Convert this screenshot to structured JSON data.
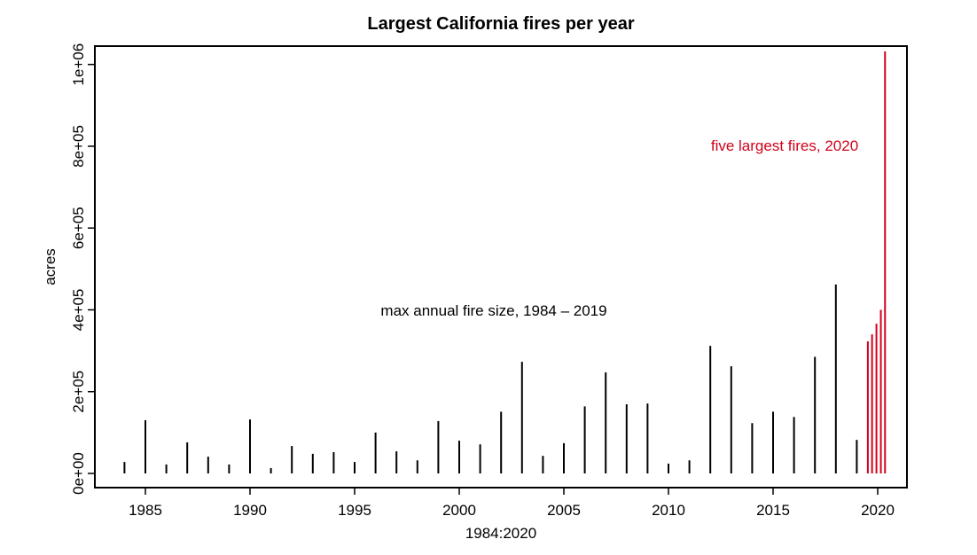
{
  "chart_data": {
    "type": "bar",
    "title": "Largest California fires per year",
    "xlabel": "1984:2020",
    "ylabel": "acres",
    "xlim": [
      1983.2,
      2020.9
    ],
    "ylim": [
      0,
      1000000
    ],
    "x_ticks": [
      "1985",
      "1990",
      "1995",
      "2000",
      "2005",
      "2010",
      "2015",
      "2020"
    ],
    "y_ticks": [
      "0e+00",
      "2e+05",
      "4e+05",
      "6e+05",
      "8e+05",
      "1e+06"
    ],
    "grid": false,
    "colors": {
      "historical": "#000000",
      "highlight": "#d0021b"
    },
    "annotations": [
      {
        "text": "max annual fire size, 1984 – 2019",
        "color": "#000000"
      },
      {
        "text": "five largest fires, 2020",
        "color": "#d0021b"
      }
    ],
    "series": [
      {
        "x": [
          1984,
          1985,
          1986,
          1987,
          1988,
          1989,
          1990,
          1991,
          1992,
          1993,
          1994,
          1995,
          1996,
          1997,
          1998,
          1999,
          2000,
          2001,
          2002,
          2003,
          2004,
          2005,
          2006,
          2007,
          2008,
          2009,
          2010,
          2011,
          2012,
          2013,
          2014,
          2015,
          2016,
          2017,
          2018,
          2019
        ],
        "values": [
          28000,
          130000,
          22000,
          76000,
          41000,
          22000,
          132000,
          13000,
          67000,
          48000,
          52000,
          28000,
          100000,
          54000,
          32000,
          128000,
          80000,
          71000,
          151000,
          273000,
          43000,
          74000,
          164000,
          247000,
          169000,
          171000,
          24000,
          32000,
          312000,
          262000,
          123000,
          151000,
          138000,
          285000,
          462000,
          82000
        ],
        "color": "#000000"
      },
      {
        "x": [
          2019.53,
          2019.73,
          2019.94,
          2020.15,
          2020.35
        ],
        "values": [
          323000,
          340000,
          366000,
          400000,
          1032000
        ],
        "color": "#d0021b"
      }
    ]
  }
}
